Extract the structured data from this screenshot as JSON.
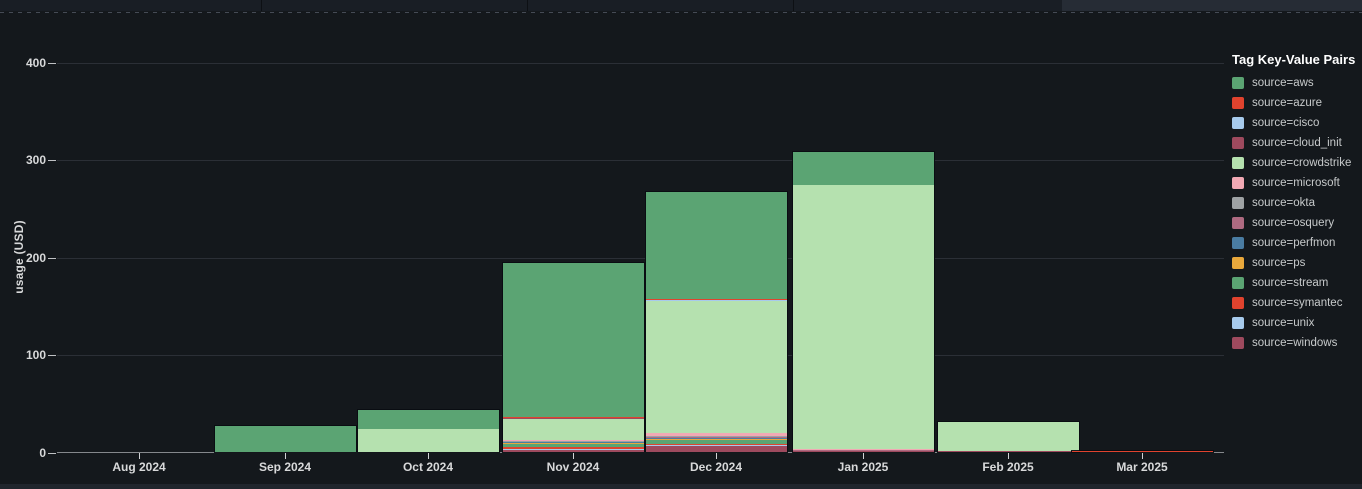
{
  "legend": {
    "title": "Tag Key-Value Pairs"
  },
  "chart_data": {
    "type": "bar",
    "stacked": true,
    "title": "",
    "xlabel": "",
    "ylabel": "usage (USD)",
    "categories": [
      "Aug 2024",
      "Sep 2024",
      "Oct 2024",
      "Nov 2024",
      "Dec 2024",
      "Jan 2025",
      "Feb 2025",
      "Mar 2025"
    ],
    "y_ticks": [
      0,
      100,
      200,
      300,
      400
    ],
    "ylim": [
      0,
      420
    ],
    "grid": true,
    "legend_position": "right",
    "legend_title": "Tag Key-Value Pairs",
    "monthly_totals_usd": [
      0,
      28,
      44.5,
      195,
      268,
      308,
      32,
      2.3
    ],
    "series_bottom_to_top": [
      {
        "name": "windows",
        "label": "source=windows",
        "color": "#9E4A5E",
        "values": [
          0,
          0,
          0,
          2.5,
          6.5,
          1.2,
          0.7,
          0.8
        ]
      },
      {
        "name": "unix",
        "label": "source=unix",
        "color": "#A7CAEC",
        "values": [
          0,
          0,
          0,
          0.3,
          0.4,
          0,
          0,
          0
        ]
      },
      {
        "name": "symantec",
        "label": "source=symantec",
        "color": "#E0432E",
        "values": [
          0,
          0,
          0,
          2,
          1,
          0,
          0,
          0.5
        ]
      },
      {
        "name": "stream",
        "label": "source=stream",
        "color": "#5BA473",
        "values": [
          0,
          0,
          0,
          3.5,
          4.5,
          0.6,
          0,
          0
        ]
      },
      {
        "name": "ps",
        "label": "source=ps",
        "color": "#E9A83C",
        "values": [
          0,
          0,
          0,
          2,
          1.5,
          0.3,
          0,
          0
        ]
      },
      {
        "name": "perfmon",
        "label": "source=perfmon",
        "color": "#4A7CA2",
        "values": [
          0,
          0,
          0,
          0.3,
          0.7,
          0,
          0,
          0
        ]
      },
      {
        "name": "osquery",
        "label": "source=osquery",
        "color": "#AE6A81",
        "values": [
          0,
          0,
          0,
          0.4,
          1.5,
          0.3,
          0,
          0
        ]
      },
      {
        "name": "okta",
        "label": "source=okta",
        "color": "#9EA2A4",
        "values": [
          0,
          0,
          0,
          0.3,
          0.5,
          0,
          0,
          0
        ]
      },
      {
        "name": "microsoft",
        "label": "source=microsoft",
        "color": "#F1A9B4",
        "values": [
          0,
          0,
          0,
          0.5,
          3,
          0.3,
          0,
          0
        ]
      },
      {
        "name": "crowdstrike",
        "label": "source=crowdstrike",
        "color": "#B5E1AF",
        "values": [
          0,
          0,
          23.5,
          23,
          136,
          271,
          30,
          0
        ]
      },
      {
        "name": "cloud_init",
        "label": "source=cloud_init",
        "color": "#9E4A5E",
        "values": [
          0,
          0,
          0,
          0.5,
          0.5,
          0,
          0.8,
          0.5
        ]
      },
      {
        "name": "cisco",
        "label": "source=cisco",
        "color": "#A7CAEC",
        "values": [
          0,
          0,
          0,
          0.3,
          0.3,
          0,
          0,
          0
        ]
      },
      {
        "name": "azure",
        "label": "source=azure",
        "color": "#E0432E",
        "values": [
          0,
          0,
          0,
          0.4,
          0.5,
          0,
          0.7,
          0.5
        ]
      },
      {
        "name": "aws",
        "label": "source=aws",
        "color": "#5BA473",
        "values": [
          0,
          28,
          21,
          159,
          111,
          35,
          0,
          0
        ]
      }
    ]
  }
}
